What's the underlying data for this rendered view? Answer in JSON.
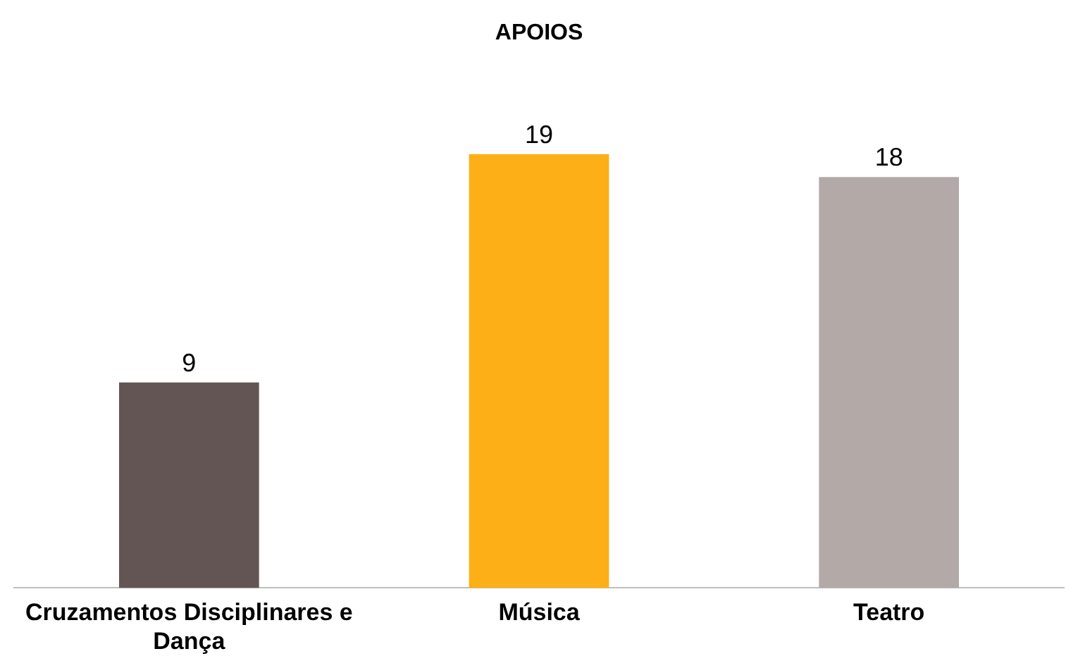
{
  "chart_data": {
    "type": "bar",
    "title": "APOIOS",
    "categories": [
      "Cruzamentos Disciplinares e Dança",
      "Música",
      "Teatro"
    ],
    "values": [
      9,
      19,
      18
    ],
    "colors": [
      "#635553",
      "#fcaf17",
      "#b3aaa8"
    ],
    "data_labels": true,
    "grid": false,
    "legend": false
  }
}
